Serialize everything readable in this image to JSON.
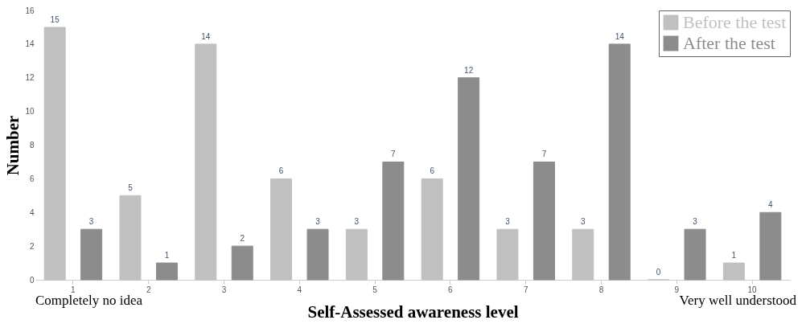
{
  "chart_data": {
    "type": "bar",
    "xlabel": "Self-Assessed awareness level",
    "ylabel": "Number",
    "categories": [
      "1",
      "2",
      "3",
      "4",
      "5",
      "6",
      "7",
      "8",
      "9",
      "10"
    ],
    "series": [
      {
        "name": "Before the test",
        "color": "#c0c0c0",
        "values": [
          15,
          5,
          14,
          6,
          3,
          6,
          3,
          3,
          0,
          1
        ]
      },
      {
        "name": "After the test",
        "color": "#8c8c8c",
        "values": [
          3,
          1,
          2,
          3,
          7,
          12,
          7,
          14,
          3,
          4
        ]
      }
    ],
    "ylim": [
      0,
      16
    ],
    "yticks": [
      0,
      2,
      4,
      6,
      8,
      10,
      12,
      14,
      16
    ],
    "grid": false,
    "legend": "top right",
    "data_labels": true,
    "annotations": [
      "Completely no idea",
      "Very well understood"
    ]
  }
}
